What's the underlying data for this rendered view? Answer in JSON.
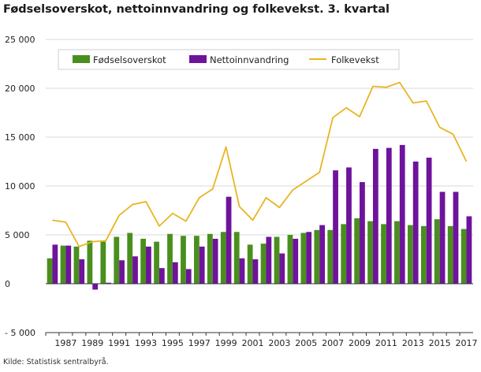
{
  "title": "Fødselsoverskot, nettoinnvandring og folkevekst. 3. kvartal",
  "source": "Kilde: Statistisk sentralbyrå.",
  "colors": {
    "births": "#4a8f1e",
    "immigration": "#6e139b",
    "growth": "#e8b521",
    "grid": "#d8d8d8",
    "axis": "#333333"
  },
  "chart_data": {
    "type": "bar+line",
    "title": "Fødselsoverskot, nettoinnvandring og folkevekst. 3. kvartal",
    "xlabel": "",
    "ylabel": "",
    "ylim": [
      -5000,
      25000
    ],
    "yticks": [
      -5000,
      0,
      5000,
      10000,
      15000,
      20000,
      25000
    ],
    "ytick_labels": [
      "- 5 000",
      "0",
      "5 000",
      "10 000",
      "15 000",
      "20 000",
      "25 000"
    ],
    "grid": true,
    "legend_position": "top",
    "categories": [
      1986,
      1987,
      1988,
      1989,
      1990,
      1991,
      1992,
      1993,
      1994,
      1995,
      1996,
      1997,
      1998,
      1999,
      2000,
      2001,
      2002,
      2003,
      2004,
      2005,
      2006,
      2007,
      2008,
      2009,
      2010,
      2011,
      2012,
      2013,
      2014,
      2015,
      2016,
      2017
    ],
    "xtick_labels": [
      "1987",
      "1989",
      "1991",
      "1993",
      "1995",
      "1997",
      "1999",
      "2001",
      "2003",
      "2005",
      "2007",
      "2009",
      "2011",
      "2013",
      "2015",
      "2017"
    ],
    "series": [
      {
        "name": "Fødselsoverskot",
        "kind": "bar",
        "values": [
          2600,
          3900,
          3800,
          4400,
          4300,
          4800,
          5200,
          4600,
          4300,
          5100,
          4900,
          4900,
          5100,
          5300,
          5300,
          4000,
          4100,
          4800,
          5000,
          5200,
          5500,
          5500,
          6100,
          6700,
          6400,
          6100,
          6400,
          6000,
          5900,
          6600,
          5900,
          5600
        ]
      },
      {
        "name": "Nettoinnvandring",
        "kind": "bar",
        "values": [
          4000,
          3900,
          2500,
          -600,
          100,
          2400,
          2800,
          3800,
          1600,
          2200,
          1500,
          3800,
          4600,
          8900,
          2600,
          2500,
          4800,
          3100,
          4600,
          5300,
          6000,
          11600,
          11900,
          10400,
          13800,
          13900,
          14200,
          12500,
          12900,
          9400,
          9400,
          6900
        ]
      },
      {
        "name": "Folkevekst",
        "kind": "line",
        "values": [
          6500,
          6300,
          3800,
          4300,
          4400,
          7000,
          8100,
          8400,
          5900,
          7200,
          6400,
          8800,
          9700,
          14000,
          7900,
          6500,
          8800,
          7800,
          9600,
          10500,
          11400,
          17000,
          18000,
          17100,
          20200,
          20100,
          20600,
          18500,
          18700,
          16000,
          15300,
          12500
        ]
      }
    ]
  }
}
